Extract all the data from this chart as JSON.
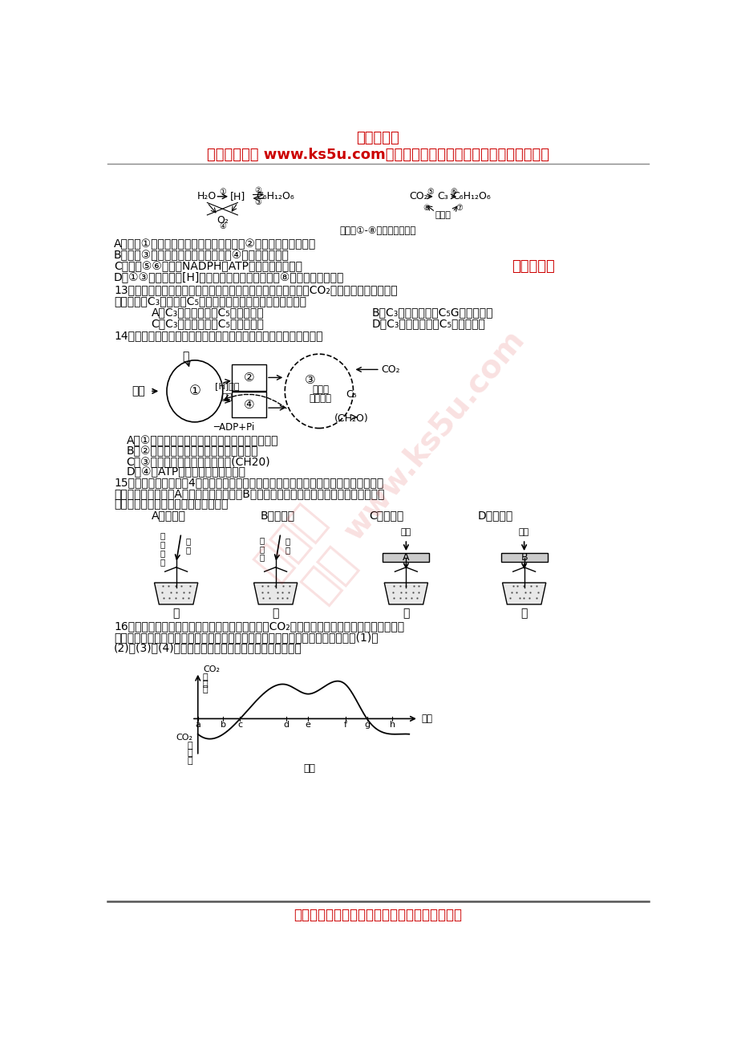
{
  "bg_color": "#ffffff",
  "top_title": "高考资源网",
  "top_subtitle": "高考资源网（ www.ks5u.com）与您相伴。欢迎广大教师踊跃来稿！！。",
  "red_color": "#cc0000",
  "black_color": "#000000",
  "gray_color": "#888888",
  "bottom_text": "试卷、试题、教案、学案等教学资源均可投稿。"
}
